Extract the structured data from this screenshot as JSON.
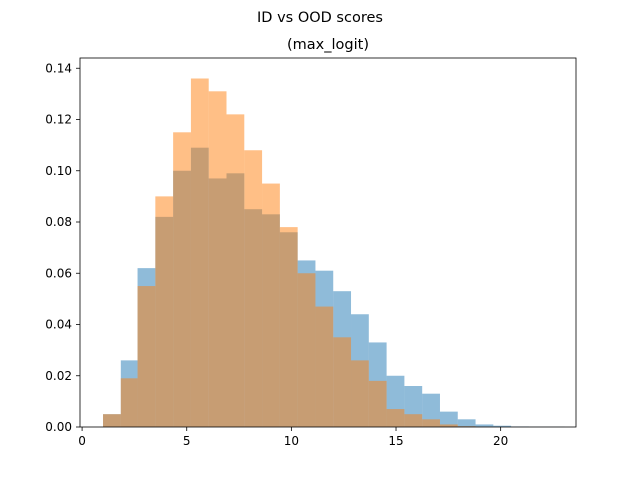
{
  "chart_data": {
    "type": "histogram",
    "suptitle": "ID vs OOD scores",
    "title": "(max_logit)",
    "xlabel": "",
    "ylabel": "",
    "xlim": [
      -0.1,
      23.6
    ],
    "ylim": [
      0.0,
      0.144
    ],
    "x_ticks": [
      0,
      5,
      10,
      15,
      20
    ],
    "x_tick_labels": [
      "0",
      "5",
      "10",
      "15",
      "20"
    ],
    "y_ticks": [
      0.0,
      0.02,
      0.04,
      0.06,
      0.08,
      0.1,
      0.12,
      0.14
    ],
    "y_tick_labels": [
      "0.00",
      "0.02",
      "0.04",
      "0.06",
      "0.08",
      "0.10",
      "0.12",
      "0.14"
    ],
    "grid": false,
    "legend": false,
    "series": [
      {
        "color": "#1f77b4",
        "opacity": 0.5,
        "bin_edges": [
          1.0,
          1.85,
          2.65,
          3.5,
          4.35,
          5.2,
          6.05,
          6.9,
          7.75,
          8.6,
          9.45,
          10.3,
          11.15,
          12.0,
          12.85,
          13.7,
          14.55,
          15.4,
          16.25,
          17.1,
          17.95,
          18.8,
          19.65,
          20.5,
          21.35,
          22.2,
          23.05
        ],
        "values": [
          0.005,
          0.026,
          0.062,
          0.082,
          0.1,
          0.109,
          0.097,
          0.099,
          0.085,
          0.083,
          0.076,
          0.065,
          0.061,
          0.053,
          0.044,
          0.033,
          0.02,
          0.016,
          0.013,
          0.006,
          0.003,
          0.001,
          0.0005,
          0.0002,
          0.0001,
          0.0001
        ]
      },
      {
        "color": "#ff7f0e",
        "opacity": 0.5,
        "bin_edges": [
          1.0,
          1.85,
          2.65,
          3.5,
          4.35,
          5.2,
          6.05,
          6.9,
          7.75,
          8.6,
          9.45,
          10.3,
          11.15,
          12.0,
          12.85,
          13.7,
          14.55,
          15.4,
          16.25,
          17.1,
          17.95,
          18.8,
          19.65,
          20.5,
          21.35,
          22.2,
          23.05
        ],
        "values": [
          0.005,
          0.019,
          0.055,
          0.09,
          0.115,
          0.136,
          0.131,
          0.122,
          0.108,
          0.095,
          0.078,
          0.06,
          0.047,
          0.035,
          0.026,
          0.018,
          0.007,
          0.005,
          0.003,
          0.001,
          0.0003,
          0.0001,
          0.0,
          0.0,
          0.0,
          0.0
        ]
      }
    ]
  }
}
